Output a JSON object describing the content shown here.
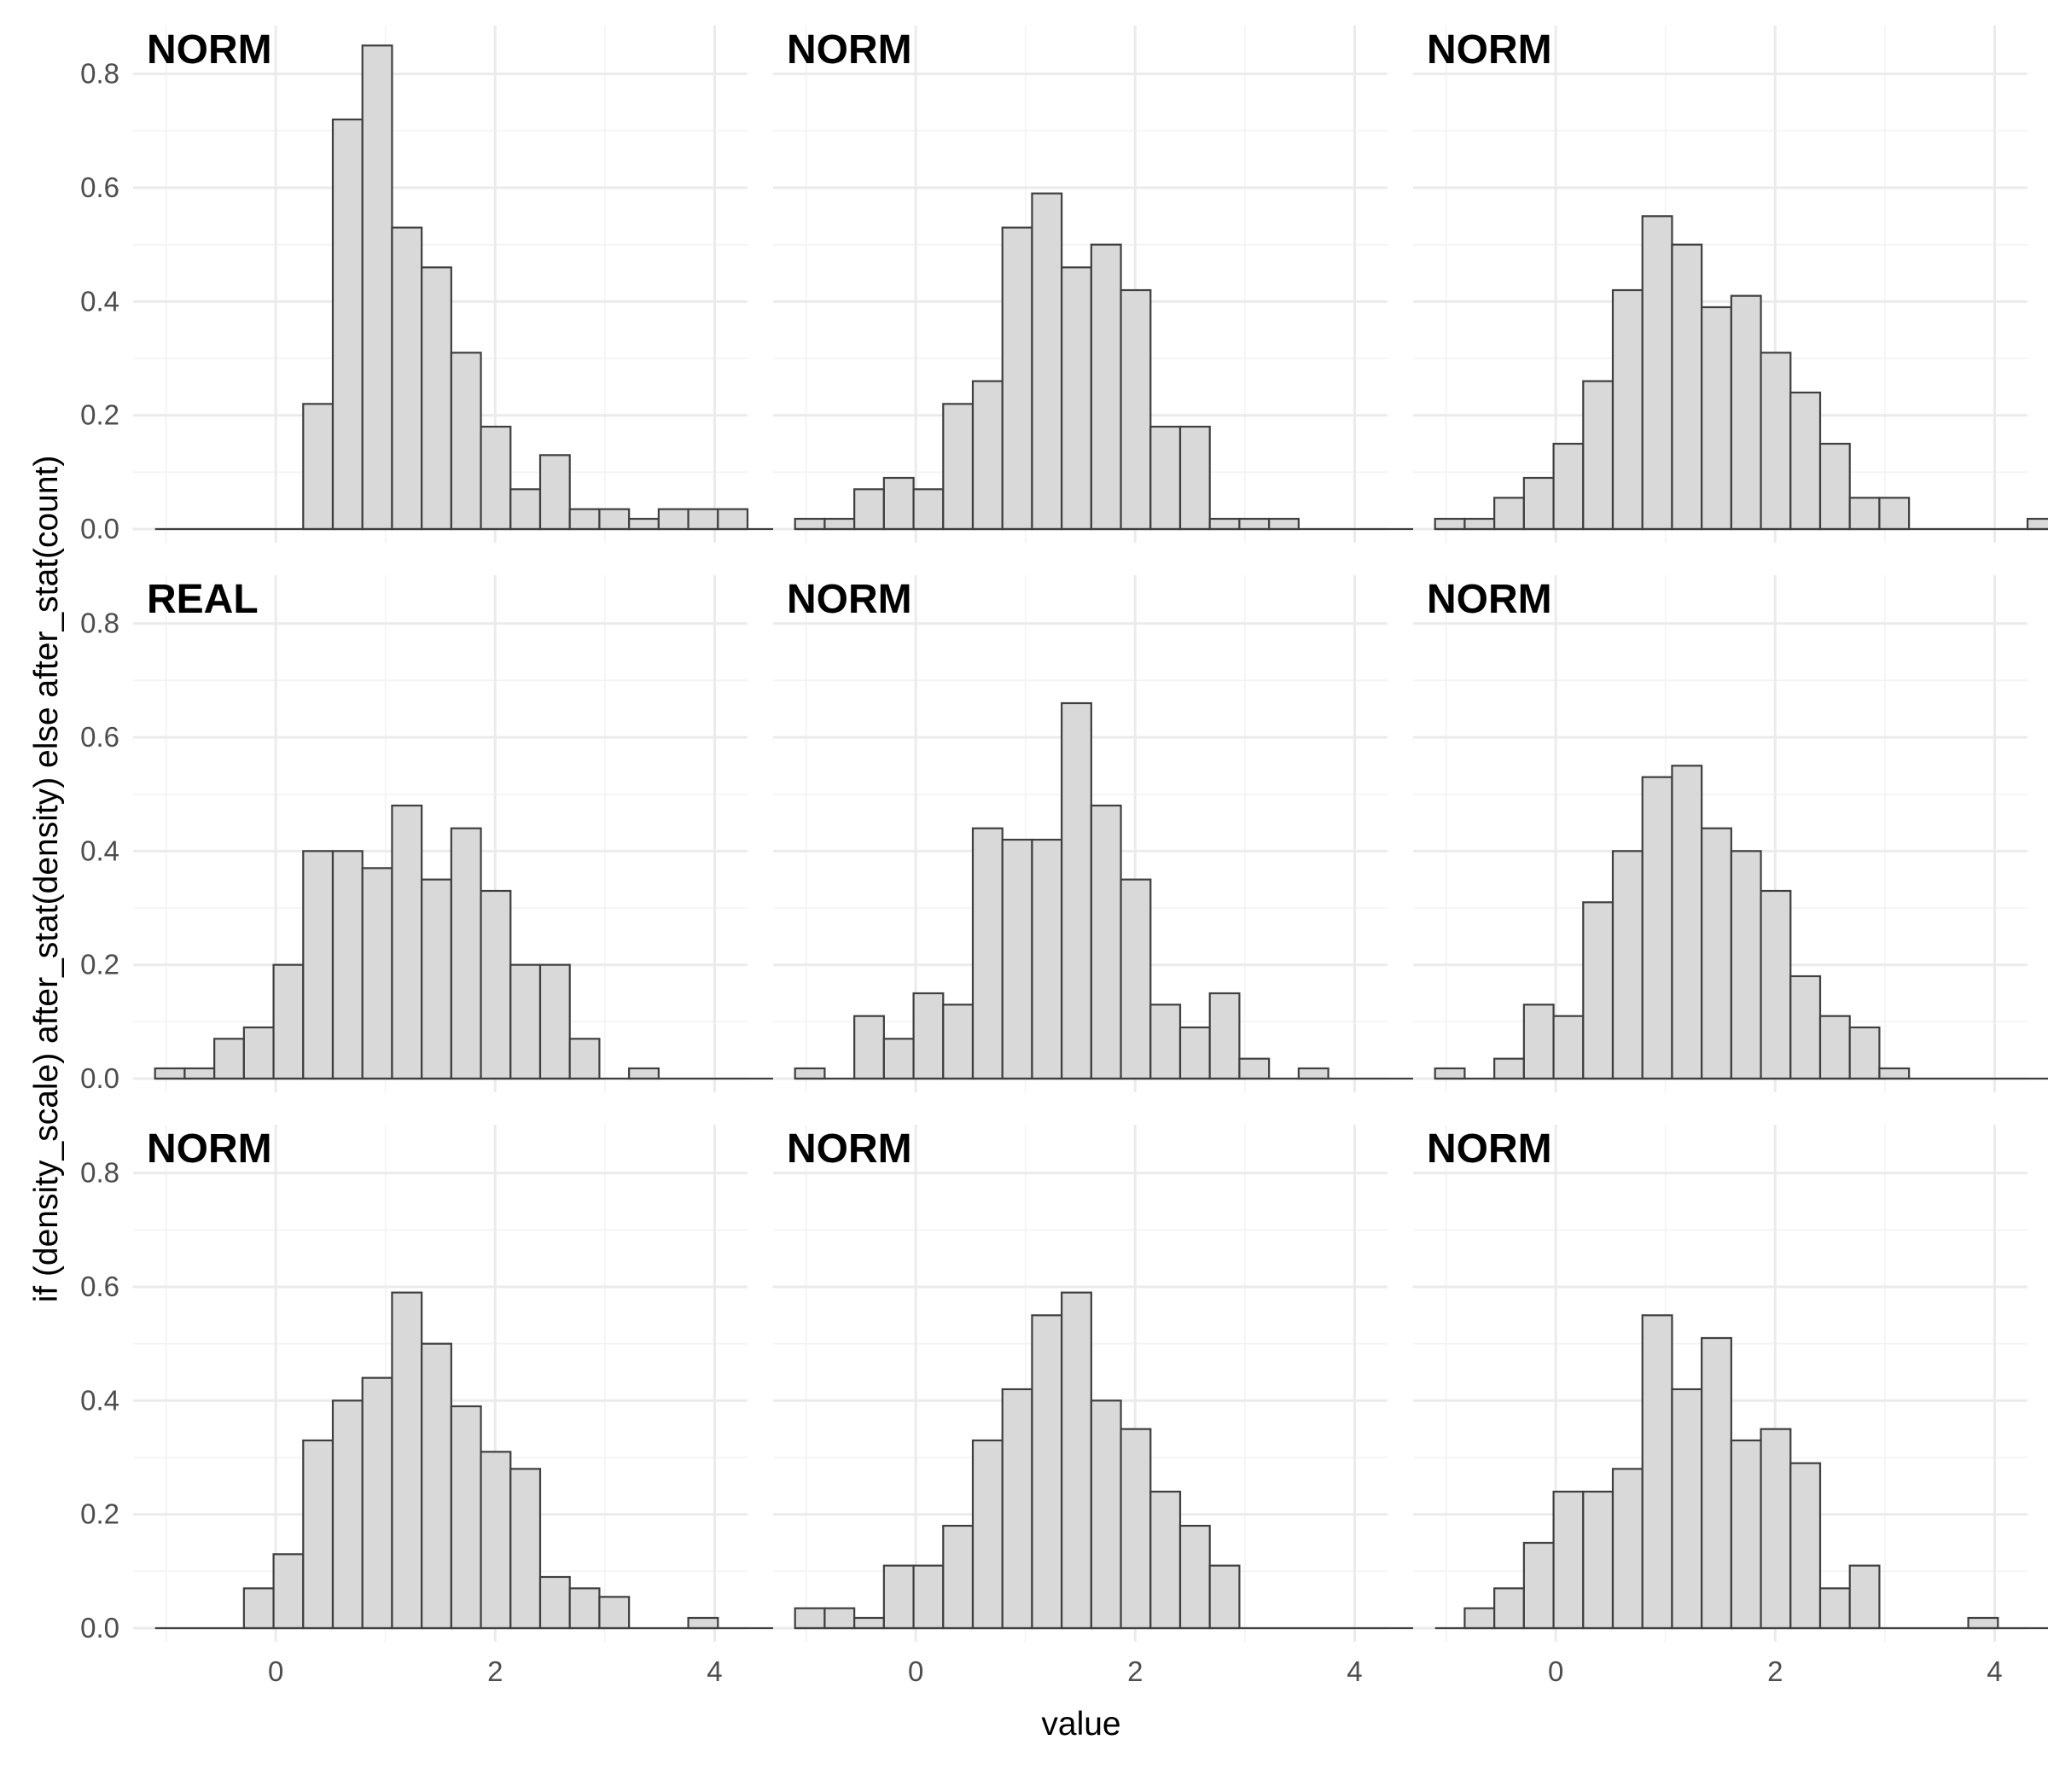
{
  "chart_data": {
    "type": "bar",
    "layout": "3x3 facet grid of histograms",
    "xlabel": "value",
    "ylabel": "if (density_scale) after_stat(density) else after_stat(count)",
    "xlim": [
      -1.3,
      4.3
    ],
    "ylim": [
      0,
      0.85
    ],
    "x_ticks": [
      0,
      2,
      4
    ],
    "y_ticks": [
      0.0,
      0.2,
      0.4,
      0.6,
      0.8
    ],
    "y_tick_labels": [
      "0.0",
      "0.2",
      "0.4",
      "0.6",
      "0.8"
    ],
    "x_tick_labels": [
      "0",
      "2",
      "4"
    ],
    "bin_start": -1.1,
    "bin_width": 0.27,
    "grid": "on",
    "colors": {
      "bar_fill": "#d9d9d9",
      "bar_stroke": "#3f3f3f",
      "grid": "#ebebeb"
    },
    "panels": [
      {
        "label": "NORM",
        "values": [
          0,
          0,
          0,
          0,
          0,
          0.22,
          0.72,
          0.85,
          0.53,
          0.46,
          0.31,
          0.18,
          0.07,
          0.13,
          0.035,
          0.035,
          0.018,
          0.035,
          0.035,
          0.035,
          0
        ]
      },
      {
        "label": "NORM",
        "values": [
          0.018,
          0.018,
          0.07,
          0.09,
          0.07,
          0.22,
          0.26,
          0.53,
          0.59,
          0.46,
          0.5,
          0.42,
          0.18,
          0.18,
          0.018,
          0.018,
          0.018,
          0,
          0,
          0,
          0
        ]
      },
      {
        "label": "NORM",
        "values": [
          0.018,
          0.018,
          0.055,
          0.09,
          0.15,
          0.26,
          0.42,
          0.55,
          0.5,
          0.39,
          0.41,
          0.31,
          0.24,
          0.15,
          0.055,
          0.055,
          0,
          0,
          0,
          0,
          0.018
        ]
      },
      {
        "label": "REAL",
        "values": [
          0.018,
          0.018,
          0.07,
          0.09,
          0.2,
          0.4,
          0.4,
          0.37,
          0.48,
          0.35,
          0.44,
          0.33,
          0.2,
          0.2,
          0.07,
          0,
          0.018,
          0,
          0,
          0,
          0
        ]
      },
      {
        "label": "NORM",
        "values": [
          0.018,
          0,
          0.11,
          0.07,
          0.15,
          0.13,
          0.44,
          0.42,
          0.42,
          0.66,
          0.48,
          0.35,
          0.13,
          0.09,
          0.15,
          0.035,
          0,
          0.018,
          0,
          0,
          0
        ]
      },
      {
        "label": "NORM",
        "values": [
          0.018,
          0,
          0.035,
          0.13,
          0.11,
          0.31,
          0.4,
          0.53,
          0.55,
          0.44,
          0.4,
          0.33,
          0.18,
          0.11,
          0.09,
          0.018,
          0,
          0,
          0,
          0,
          0
        ]
      },
      {
        "label": "NORM",
        "values": [
          0,
          0,
          0,
          0.07,
          0.13,
          0.33,
          0.4,
          0.44,
          0.59,
          0.5,
          0.39,
          0.31,
          0.28,
          0.09,
          0.07,
          0.055,
          0,
          0,
          0.018,
          0,
          0
        ]
      },
      {
        "label": "NORM",
        "values": [
          0.035,
          0.035,
          0.018,
          0.11,
          0.11,
          0.18,
          0.33,
          0.42,
          0.55,
          0.59,
          0.4,
          0.35,
          0.24,
          0.18,
          0.11,
          0,
          0,
          0,
          0,
          0,
          0
        ]
      },
      {
        "label": "NORM",
        "values": [
          0,
          0.035,
          0.07,
          0.15,
          0.24,
          0.24,
          0.28,
          0.55,
          0.42,
          0.51,
          0.33,
          0.35,
          0.29,
          0.07,
          0.11,
          0,
          0,
          0,
          0.018,
          0,
          0
        ]
      }
    ]
  }
}
